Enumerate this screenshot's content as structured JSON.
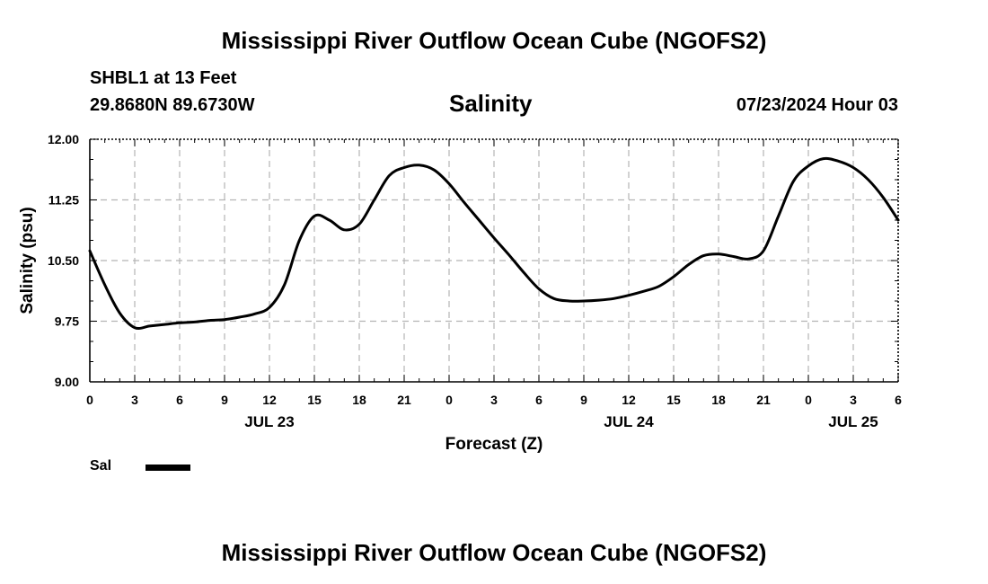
{
  "header": {
    "title": "Mississippi River Outflow Ocean Cube (NGOFS2)",
    "station": "SHBL1 at 13 Feet",
    "coords": "29.8680N  89.6730W",
    "variable": "Salinity",
    "date": "07/23/2024 Hour 03"
  },
  "footer": {
    "title": "Mississippi River Outflow Ocean Cube (NGOFS2)"
  },
  "legend": {
    "label": "Sal"
  },
  "chart_data": {
    "type": "line",
    "xlabel": "Forecast (Z)",
    "ylabel": "Salinity (psu)",
    "ylim": [
      9.0,
      12.0
    ],
    "xlim": [
      0,
      54
    ],
    "x_unit": "forecast hour",
    "x_ticks": [
      "0",
      "3",
      "6",
      "9",
      "12",
      "15",
      "18",
      "21",
      "0",
      "3",
      "6",
      "9",
      "12",
      "15",
      "18",
      "21",
      "0",
      "3",
      "6"
    ],
    "y_ticks": [
      "9.00",
      "9.75",
      "10.50",
      "11.25",
      "12.00"
    ],
    "day_labels": [
      {
        "label": "JUL 23",
        "at_hour": 12
      },
      {
        "label": "JUL 24",
        "at_hour": 36
      },
      {
        "label": "JUL 25",
        "at_hour": 51
      }
    ],
    "grid": true,
    "series": [
      {
        "name": "Sal",
        "x": [
          0,
          1,
          2,
          3,
          4,
          5,
          6,
          7,
          8,
          9,
          10,
          11,
          12,
          13,
          14,
          15,
          16,
          17,
          18,
          19,
          20,
          21,
          22,
          23,
          24,
          25,
          26,
          27,
          28,
          29,
          30,
          31,
          32,
          33,
          34,
          35,
          36,
          37,
          38,
          39,
          40,
          41,
          42,
          43,
          44,
          45,
          46,
          47,
          48,
          49,
          50,
          51,
          52,
          53,
          54
        ],
        "values": [
          10.62,
          10.2,
          9.85,
          9.67,
          9.69,
          9.71,
          9.73,
          9.74,
          9.76,
          9.77,
          9.8,
          9.84,
          9.92,
          10.2,
          10.75,
          11.05,
          11.0,
          10.88,
          10.95,
          11.25,
          11.55,
          11.65,
          11.68,
          11.62,
          11.45,
          11.22,
          11.0,
          10.78,
          10.57,
          10.35,
          10.15,
          10.03,
          10.0,
          10.0,
          10.01,
          10.03,
          10.07,
          10.12,
          10.18,
          10.3,
          10.45,
          10.56,
          10.58,
          10.55,
          10.52,
          10.62,
          11.05,
          11.48,
          11.67,
          11.76,
          11.73,
          11.65,
          11.5,
          11.28,
          11.0
        ]
      }
    ]
  }
}
